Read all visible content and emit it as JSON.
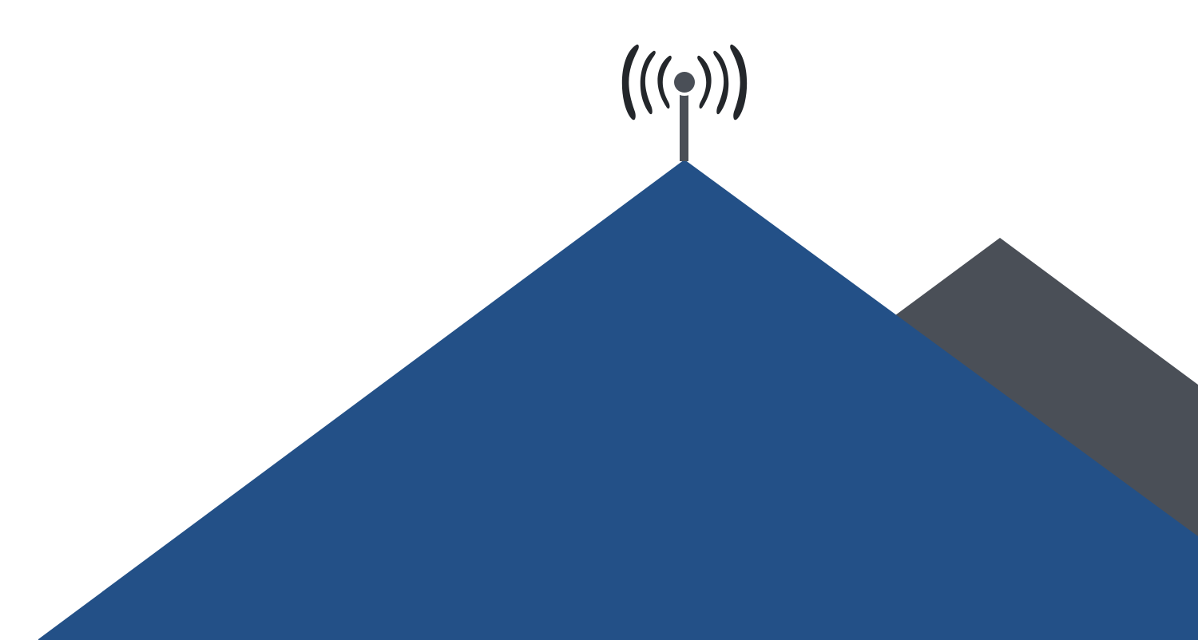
{
  "colors": {
    "background": "#ffffff",
    "front_mountain": "#235087",
    "back_mountain": "#4a4f57",
    "antenna": "#4a4f57",
    "signal_waves": "#24272b"
  },
  "illustration": {
    "icons": [
      "broadcast-antenna-icon",
      "signal-waves-icon",
      "mountain-icon"
    ]
  }
}
